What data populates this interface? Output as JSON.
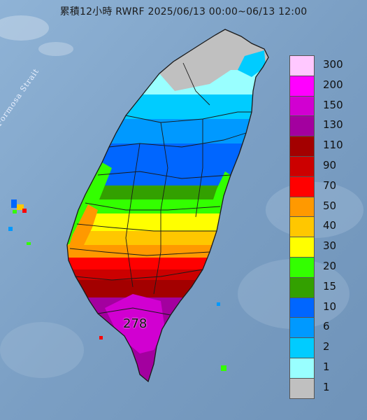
{
  "header": {
    "title": "累積12小時 RWRF 2025/06/13 00:00~06/13 12:00"
  },
  "map": {
    "sea_label": "Formosa Strait",
    "max_value": "278",
    "colors": {
      "sea": "#7fa3c7",
      "land_border": "#1a1a1a"
    }
  },
  "legend": {
    "items": [
      {
        "label": "300",
        "color": "#ffc8ff"
      },
      {
        "label": "200",
        "color": "#ff00ff"
      },
      {
        "label": "150",
        "color": "#d100d1"
      },
      {
        "label": "130",
        "color": "#a3009f"
      },
      {
        "label": "110",
        "color": "#a30000"
      },
      {
        "label": "90",
        "color": "#cc0000"
      },
      {
        "label": "70",
        "color": "#ff0000"
      },
      {
        "label": "50",
        "color": "#ff9900"
      },
      {
        "label": "40",
        "color": "#ffc700"
      },
      {
        "label": "30",
        "color": "#ffff00"
      },
      {
        "label": "20",
        "color": "#33ff00"
      },
      {
        "label": "15",
        "color": "#33a000"
      },
      {
        "label": "10",
        "color": "#0066ff"
      },
      {
        "label": "6",
        "color": "#0099ff"
      },
      {
        "label": "2",
        "color": "#00ccff"
      },
      {
        "label": "1",
        "color": "#99ffff"
      },
      {
        "label": "",
        "color": "#c0c0c0"
      }
    ]
  }
}
